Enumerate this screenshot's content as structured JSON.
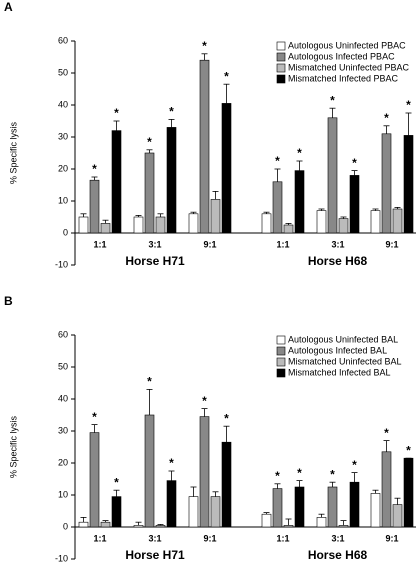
{
  "chart_data": [
    {
      "type": "bar",
      "panel": "A",
      "y_label": "% Specific lysis",
      "groups": [
        {
          "name": "Horse H71",
          "categories": [
            "1:1",
            "3:1",
            "9:1"
          ]
        },
        {
          "name": "Horse H68",
          "categories": [
            "1:1",
            "3:1",
            "9:1"
          ]
        }
      ],
      "ylim": [
        -10,
        60
      ],
      "yticks": [
        -10,
        0,
        10,
        20,
        30,
        40,
        50,
        60
      ],
      "significance_marker": "*",
      "series": [
        {
          "name": "Autologous Uninfected PBAC",
          "color": "#ffffff",
          "values": [
            5,
            5,
            6,
            6,
            7,
            7
          ],
          "errors": [
            1,
            0.5,
            0.5,
            0.5,
            0.5,
            0.5
          ],
          "significant": [
            false,
            false,
            false,
            false,
            false,
            false
          ]
        },
        {
          "name": "Autologous Infected PBAC",
          "color": "#888888",
          "values": [
            16.5,
            25,
            54,
            16,
            36,
            31
          ],
          "errors": [
            1,
            1,
            2,
            4,
            3,
            2.5
          ],
          "significant": [
            true,
            true,
            true,
            true,
            true,
            true
          ]
        },
        {
          "name": "Mismatched Uninfected PBAC",
          "color": "#bbbbbb",
          "values": [
            3,
            5,
            10.5,
            2.5,
            4.5,
            7.5
          ],
          "errors": [
            1,
            1,
            2.5,
            0.5,
            0.5,
            0.5
          ],
          "significant": [
            false,
            false,
            false,
            false,
            false,
            false
          ]
        },
        {
          "name": "Mismatched Infected PBAC",
          "color": "#000000",
          "values": [
            32,
            33,
            40.5,
            19.5,
            18,
            30.5
          ],
          "errors": [
            3,
            2.5,
            6,
            3,
            1.5,
            7
          ],
          "significant": [
            true,
            true,
            true,
            true,
            true,
            true
          ]
        }
      ]
    },
    {
      "type": "bar",
      "panel": "B",
      "y_label": "% Specific lysis",
      "groups": [
        {
          "name": "Horse H71",
          "categories": [
            "1:1",
            "3:1",
            "9:1"
          ]
        },
        {
          "name": "Horse H68",
          "categories": [
            "1:1",
            "3:1",
            "9:1"
          ]
        }
      ],
      "ylim": [
        -10,
        60
      ],
      "yticks": [
        -10,
        0,
        10,
        20,
        30,
        40,
        50,
        60
      ],
      "significance_marker": "*",
      "series": [
        {
          "name": "Autologous Uninfected BAL",
          "color": "#ffffff",
          "values": [
            1.5,
            0.5,
            9.5,
            4,
            3,
            10.5
          ],
          "errors": [
            1.5,
            1,
            3,
            0.5,
            1,
            1
          ],
          "significant": [
            false,
            false,
            false,
            false,
            false,
            false
          ]
        },
        {
          "name": "Autologous Infected BAL",
          "color": "#888888",
          "values": [
            29.5,
            35,
            34.5,
            12,
            12.5,
            23.5
          ],
          "errors": [
            2.5,
            8,
            2.5,
            1.5,
            1.5,
            3.5
          ],
          "significant": [
            true,
            true,
            true,
            true,
            true,
            true
          ]
        },
        {
          "name": "Mismatched Uninfected BAL",
          "color": "#bbbbbb",
          "values": [
            1.5,
            0.5,
            9.5,
            0.5,
            0.5,
            7
          ],
          "errors": [
            0.5,
            0.3,
            1.5,
            2,
            1.5,
            2
          ],
          "significant": [
            false,
            false,
            false,
            false,
            false,
            false
          ]
        },
        {
          "name": "Mismatched Infected BAL",
          "color": "#000000",
          "values": [
            9.5,
            14.5,
            26.5,
            12.5,
            14,
            21.5
          ],
          "errors": [
            2,
            3,
            5,
            2,
            3,
            0
          ],
          "significant": [
            true,
            true,
            true,
            true,
            true,
            true
          ]
        }
      ]
    }
  ]
}
